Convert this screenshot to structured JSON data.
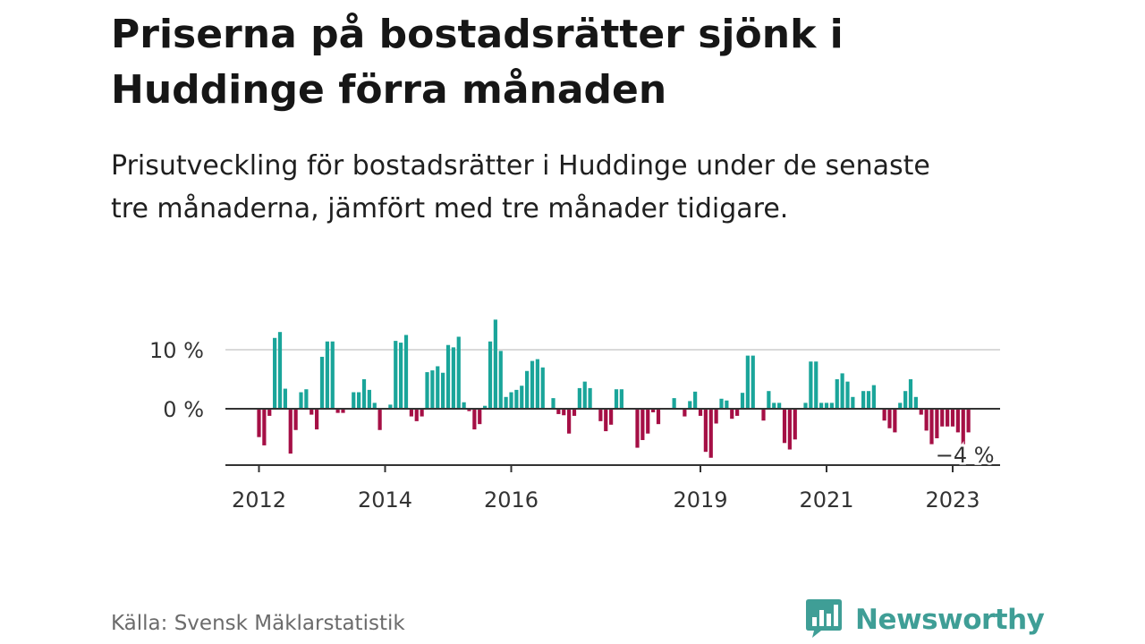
{
  "title": "Priserna på bostadsrätter sjönk i Huddinge förra månaden",
  "subtitle": "Prisutveckling för bostadsrätter i Huddinge under de senaste tre månaderna, jämfört med tre månader tidigare.",
  "source": "Källa: Svensk Mäklarstatistik",
  "brand": {
    "name": "Newsworthy",
    "icon": "newsworthy-bar-chart-icon"
  },
  "colors": {
    "positive": "#1aa59a",
    "negative": "#a50f45",
    "grid": "#d9d9d9",
    "zero": "#333333"
  },
  "chart_data": {
    "type": "bar",
    "title": "",
    "xlabel": "",
    "ylabel": "",
    "y_unit": "%",
    "ylim": [
      -10,
      16
    ],
    "yticks": [
      {
        "value": 0,
        "label": "0 %"
      },
      {
        "value": 10,
        "label": "10 %"
      }
    ],
    "xticks": [
      {
        "date": "2012-01",
        "label": "2012"
      },
      {
        "date": "2014-01",
        "label": "2014"
      },
      {
        "date": "2016-01",
        "label": "2016"
      },
      {
        "date": "2019-01",
        "label": "2019"
      },
      {
        "date": "2021-01",
        "label": "2021"
      },
      {
        "date": "2023-01",
        "label": "2023"
      }
    ],
    "annotation": {
      "date": "2023-04",
      "value": -4,
      "label": "−4 %"
    },
    "grid": true,
    "x": [
      "2012-01",
      "2012-02",
      "2012-03",
      "2012-04",
      "2012-05",
      "2012-06",
      "2012-07",
      "2012-08",
      "2012-09",
      "2012-10",
      "2012-11",
      "2012-12",
      "2013-01",
      "2013-02",
      "2013-03",
      "2013-04",
      "2013-05",
      "2013-06",
      "2013-07",
      "2013-08",
      "2013-09",
      "2013-10",
      "2013-11",
      "2013-12",
      "2014-01",
      "2014-02",
      "2014-03",
      "2014-04",
      "2014-05",
      "2014-06",
      "2014-07",
      "2014-08",
      "2014-09",
      "2014-10",
      "2014-11",
      "2014-12",
      "2015-01",
      "2015-02",
      "2015-03",
      "2015-04",
      "2015-05",
      "2015-06",
      "2015-07",
      "2015-08",
      "2015-09",
      "2015-10",
      "2015-11",
      "2015-12",
      "2016-01",
      "2016-02",
      "2016-03",
      "2016-04",
      "2016-05",
      "2016-06",
      "2016-07",
      "2016-08",
      "2016-09",
      "2016-10",
      "2016-11",
      "2016-12",
      "2017-01",
      "2017-02",
      "2017-03",
      "2017-04",
      "2017-05",
      "2017-06",
      "2017-07",
      "2017-08",
      "2017-09",
      "2017-10",
      "2017-11",
      "2017-12",
      "2018-01",
      "2018-02",
      "2018-03",
      "2018-04",
      "2018-05",
      "2018-06",
      "2018-07",
      "2018-08",
      "2018-09",
      "2018-10",
      "2018-11",
      "2018-12",
      "2019-01",
      "2019-02",
      "2019-03",
      "2019-04",
      "2019-05",
      "2019-06",
      "2019-07",
      "2019-08",
      "2019-09",
      "2019-10",
      "2019-11",
      "2019-12",
      "2020-01",
      "2020-02",
      "2020-03",
      "2020-04",
      "2020-05",
      "2020-06",
      "2020-07",
      "2020-08",
      "2020-09",
      "2020-10",
      "2020-11",
      "2020-12",
      "2021-01",
      "2021-02",
      "2021-03",
      "2021-04",
      "2021-05",
      "2021-06",
      "2021-07",
      "2021-08",
      "2021-09",
      "2021-10",
      "2021-11",
      "2021-12",
      "2022-01",
      "2022-02",
      "2022-03",
      "2022-04",
      "2022-05",
      "2022-06",
      "2022-07",
      "2022-08",
      "2022-09",
      "2022-10",
      "2022-11",
      "2022-12",
      "2023-01",
      "2023-02",
      "2023-03",
      "2023-04"
    ],
    "values": [
      -4.8,
      -6.2,
      -1.2,
      12,
      13,
      3.4,
      -7.6,
      -3.6,
      2.8,
      3.3,
      -1,
      -3.5,
      8.8,
      11.4,
      11.4,
      -0.7,
      -0.7,
      0,
      2.8,
      2.8,
      5,
      3.2,
      1,
      -3.6,
      0,
      0.7,
      11.5,
      11.2,
      12.5,
      -1.3,
      -2.1,
      -1.3,
      6.2,
      6.5,
      7.2,
      6.1,
      10.8,
      10.4,
      12.2,
      1.1,
      -0.4,
      -3.5,
      -2.6,
      0.5,
      11.4,
      15.1,
      9.8,
      2,
      2.8,
      3.2,
      3.9,
      6.4,
      8.1,
      8.4,
      7,
      0,
      1.8,
      -0.9,
      -1.1,
      -4.2,
      -1.2,
      3.5,
      4.6,
      3.5,
      0,
      -2.1,
      -3.8,
      -2.7,
      3.3,
      3.3,
      0,
      0,
      -6.6,
      -5.3,
      -4.2,
      -0.6,
      -2.6,
      0,
      0,
      1.8,
      0,
      -1.3,
      1.3,
      2.9,
      -1.2,
      -7.3,
      -8.3,
      -2.5,
      1.7,
      1.4,
      -1.7,
      -1.2,
      2.7,
      9,
      9,
      0,
      -2,
      3,
      1,
      1,
      -5.8,
      -6.9,
      -5.2,
      0,
      1,
      8,
      8,
      1,
      1,
      1,
      5,
      6,
      4.6,
      2,
      0,
      3,
      3,
      4,
      0,
      -2,
      -3.3,
      -4,
      1,
      3,
      5,
      2,
      -1,
      -3.7,
      -6,
      -5,
      -3,
      -3,
      -3,
      -4,
      -6,
      -4
    ]
  }
}
